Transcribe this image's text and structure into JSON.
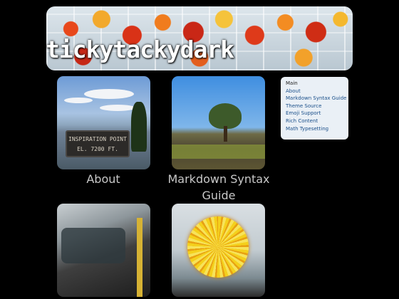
{
  "site": {
    "title": "tickytackydark"
  },
  "tiles": [
    {
      "caption": "About",
      "sign_text": "INSPIRATION POINT\nEL. 7200 FT."
    },
    {
      "caption": "Markdown Syntax Guide"
    },
    {
      "caption": ""
    },
    {
      "caption": ""
    }
  ],
  "menu": {
    "items": [
      "Main",
      "About",
      "Markdown Syntax Guide",
      "Theme Source",
      "Emoji Support",
      "Rich Content",
      "Math Typesetting"
    ]
  },
  "colors": {
    "background": "#000000",
    "menu_background": "#eaf0f6",
    "menu_link": "#1a4f8a",
    "caption": "#c8c8c8"
  }
}
